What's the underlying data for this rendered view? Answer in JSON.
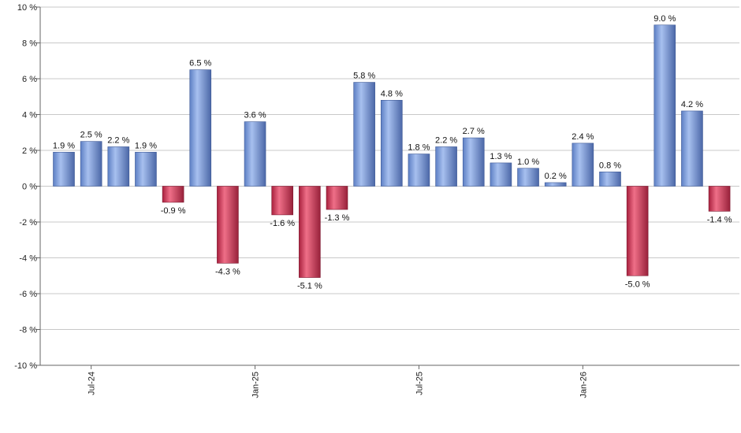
{
  "chart_data": {
    "type": "bar",
    "title": "",
    "xlabel": "",
    "ylabel": "",
    "ylim": [
      -10,
      10
    ],
    "ytick_step": 2,
    "ytick_suffix": " %",
    "grid": true,
    "legend": "none",
    "colors": {
      "positive": "#7a9cd8",
      "negative": "#c8304e",
      "grid": "#c8c8c8",
      "axis": "#666666"
    },
    "value_label_suffix": " %",
    "x_tick_labels": [
      {
        "label": "Jul-24",
        "index": 1
      },
      {
        "label": "Jan-25",
        "index": 7
      },
      {
        "label": "Jul-25",
        "index": 13
      },
      {
        "label": "Jan-26",
        "index": 19
      }
    ],
    "values": [
      1.9,
      2.5,
      2.2,
      1.9,
      -0.9,
      6.5,
      -4.3,
      3.6,
      -1.6,
      -5.1,
      -1.3,
      5.8,
      4.8,
      1.8,
      2.2,
      2.7,
      1.3,
      1.0,
      0.2,
      2.4,
      0.8,
      -5.0,
      9.0,
      4.2,
      -1.4
    ]
  }
}
